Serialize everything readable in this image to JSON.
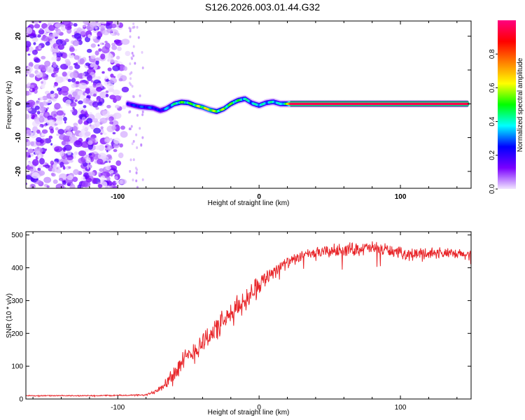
{
  "figure_title": "S126.2026.003.01.44.G32",
  "chart_data": [
    {
      "type": "heatmap",
      "title": "S126.2026.003.01.44.G32",
      "xlabel": "Height of straight line (km)",
      "ylabel": "Frequency (Hz)",
      "xlim": [
        -165,
        150
      ],
      "ylim": [
        -25,
        24.5
      ],
      "x_ticks": [
        -100,
        0,
        100
      ],
      "x_tick_labels": [
        "-100",
        "0",
        "100"
      ],
      "y_ticks": [
        -20,
        -10,
        0,
        10,
        20
      ],
      "y_tick_labels": [
        "-20",
        "-10",
        "0",
        "10",
        "20"
      ],
      "colorbar": {
        "label": "Normalized spectral amplitude",
        "range": [
          0,
          1
        ],
        "ticks": [
          0.0,
          0.2,
          0.4,
          0.6,
          0.8
        ],
        "tick_labels": [
          "0.0",
          "0.2",
          "0.4",
          "0.6",
          "0.8"
        ],
        "colors": [
          "#f2e6ff",
          "#7a00ff",
          "#0000ff",
          "#00ffff",
          "#00ff00",
          "#ffff00",
          "#ff8000",
          "#ff0000",
          "#ff0080"
        ]
      },
      "noise_region_x": [
        -165,
        -92
      ],
      "ridge_line": {
        "x": [
          -93,
          -85,
          -75,
          -70,
          -66,
          -60,
          -55,
          -50,
          -45,
          -40,
          -35,
          -30,
          -25,
          -20,
          -15,
          -10,
          -5,
          0,
          5,
          10,
          15,
          20,
          22,
          30,
          50,
          80,
          100,
          120,
          140,
          148
        ],
        "y": [
          0.0,
          -0.8,
          -1.2,
          -2.0,
          -1.5,
          0.0,
          0.5,
          0.3,
          -0.5,
          -1.0,
          -1.8,
          -2.3,
          -1.5,
          0.0,
          1.0,
          1.5,
          0.2,
          -0.5,
          0.3,
          0.6,
          0.0,
          0.0,
          0.0,
          0.0,
          0.0,
          0.0,
          0.0,
          0.0,
          0.0,
          0.0
        ],
        "amplitude": [
          0.25,
          0.3,
          0.3,
          0.25,
          0.35,
          0.45,
          0.55,
          0.5,
          0.6,
          0.65,
          0.7,
          0.55,
          0.6,
          0.55,
          0.5,
          0.45,
          0.4,
          0.45,
          0.4,
          0.45,
          0.4,
          0.6,
          0.95,
          0.95,
          0.95,
          0.95,
          0.95,
          0.95,
          0.95,
          0.95
        ]
      }
    },
    {
      "type": "line",
      "xlabel": "Height of straight line (km)",
      "ylabel": "SNR (10 * v/v)",
      "xlim": [
        -165,
        150
      ],
      "ylim": [
        0,
        510
      ],
      "x_ticks": [
        -100,
        0,
        100
      ],
      "x_tick_labels": [
        "-100",
        "0",
        "100"
      ],
      "y_ticks": [
        0,
        100,
        200,
        300,
        400,
        500
      ],
      "y_tick_labels": [
        "0",
        "100",
        "200",
        "300",
        "400",
        "500"
      ],
      "series": [
        {
          "name": "SNR",
          "color": "#e8262a",
          "trend_x": [
            -165,
            -120,
            -80,
            -75,
            -70,
            -65,
            -60,
            -55,
            -50,
            -45,
            -40,
            -35,
            -30,
            -25,
            -20,
            -15,
            -10,
            -5,
            0,
            5,
            10,
            15,
            20,
            25,
            30,
            40,
            50,
            60,
            70,
            80,
            90,
            100,
            110,
            120,
            130,
            140,
            150
          ],
          "trend_y": [
            10,
            10,
            12,
            20,
            35,
            55,
            80,
            105,
            130,
            150,
            175,
            195,
            215,
            235,
            255,
            280,
            300,
            330,
            350,
            370,
            390,
            405,
            415,
            425,
            435,
            445,
            450,
            455,
            458,
            460,
            455,
            445,
            440,
            445,
            445,
            440,
            440
          ],
          "noise_amplitude": [
            2,
            2,
            3,
            8,
            15,
            25,
            35,
            40,
            40,
            45,
            45,
            45,
            45,
            45,
            45,
            45,
            45,
            40,
            35,
            30,
            30,
            25,
            20,
            20,
            20,
            20,
            25,
            25,
            25,
            25,
            25,
            20,
            25,
            25,
            20,
            20,
            20
          ]
        }
      ]
    }
  ]
}
